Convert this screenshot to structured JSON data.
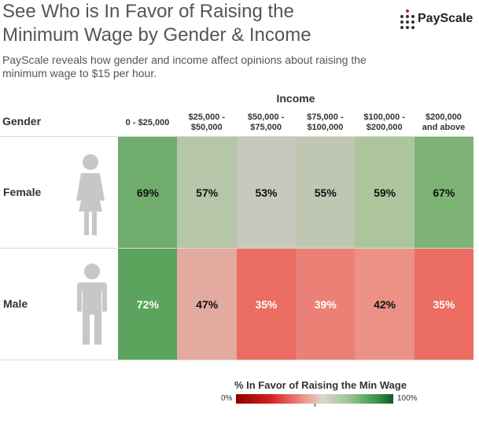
{
  "title": "See Who is In Favor of Raising the Minimum Wage by Gender & Income",
  "subtitle": "PayScale reveals how gender and income affect opinions about raising the minimum wage to $15 per hour.",
  "logo": {
    "text": "PayScale"
  },
  "colors": {
    "green": "#3f9a4b",
    "red": "#d62020",
    "neutral": "#d8d8d0"
  },
  "chart_data": {
    "type": "heatmap",
    "title": "See Who is In Favor of Raising the Minimum Wage by Gender & Income",
    "x_axis_label": "Income",
    "y_axis_label": "Gender",
    "x": [
      "0 - $25,000",
      "$25,000 -\n$50,000",
      "$50,000 -\n$75,000",
      "$75,000 -\n$100,000",
      "$100,000 -\n$200,000",
      "$200,000\nand above"
    ],
    "y": [
      "Female",
      "Male"
    ],
    "values": [
      [
        69,
        57,
        53,
        55,
        59,
        67
      ],
      [
        72,
        47,
        35,
        39,
        42,
        35
      ]
    ],
    "value_format": "percent",
    "legend": {
      "title": "% In Favor of Raising the Min Wage",
      "min_label": "0%",
      "max_label": "100%",
      "range": [
        0,
        100
      ],
      "colormap": "red-gray-green diverging"
    }
  },
  "icons": {
    "female": "female-person-icon",
    "male": "male-person-icon"
  }
}
